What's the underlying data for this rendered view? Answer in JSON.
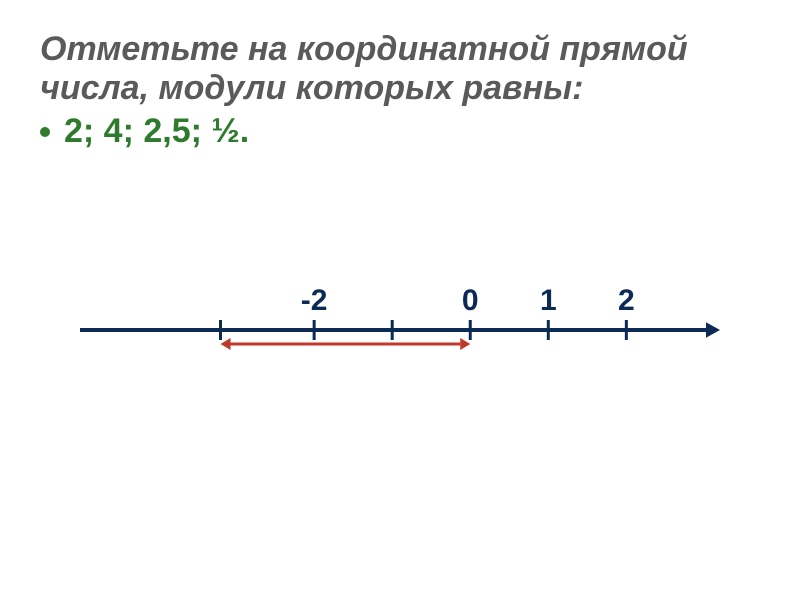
{
  "title": {
    "text": "Отметьте на координатной прямой числа, модули которых равны:",
    "color": "#5a5a5a",
    "fontsize": 34
  },
  "bullet": {
    "color": "#2e7b2e",
    "dot_color": "#2e7b2e",
    "text": "2; 4; 2,5; ½.",
    "fontsize": 34
  },
  "numberline": {
    "type": "numberline",
    "line_color": "#0b2a56",
    "line_width": 4,
    "label_color": "#0b2a56",
    "label_fontsize": 30,
    "xlim": [
      -5,
      3.2
    ],
    "y_baseline": 70,
    "ticks": [
      {
        "x": -3.2,
        "enable_label": false
      },
      {
        "x": -2,
        "label": "-2",
        "enable_label": true
      },
      {
        "x": -1,
        "enable_label": false
      },
      {
        "x": 0,
        "label": "0",
        "enable_label": true
      },
      {
        "x": 1,
        "label": "1",
        "enable_label": true
      },
      {
        "x": 2,
        "label": "2",
        "enable_label": true
      }
    ],
    "tick_half_height": 10,
    "arrow_head": 14,
    "double_arrow": {
      "color": "#c0372e",
      "width": 3,
      "from_x": -3.2,
      "to_x": 0,
      "y_offset": 14,
      "head": 10
    }
  }
}
